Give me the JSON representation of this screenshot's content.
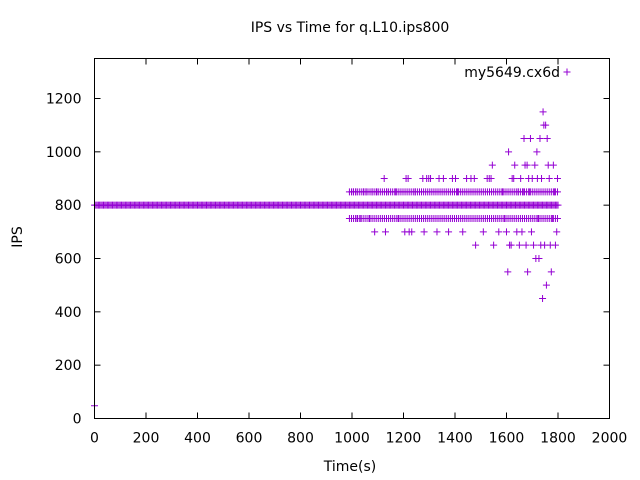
{
  "chart_data": {
    "type": "scatter",
    "title": "IPS vs Time for q.L10.ips800",
    "xlabel": "Time(s)",
    "ylabel": "IPS",
    "xlim": [
      0,
      2000
    ],
    "ylim": [
      0,
      1350
    ],
    "xticks": [
      0,
      200,
      400,
      600,
      800,
      1000,
      1200,
      1400,
      1600,
      1800,
      2000
    ],
    "yticks": [
      0,
      200,
      400,
      600,
      800,
      1000,
      1200
    ],
    "legend_position": "top-right",
    "grid": false,
    "marker": "+",
    "series": [
      {
        "name": "my5649.cx6d",
        "color": "#9400d3",
        "baseline": {
          "from": 0,
          "to": 1800,
          "step": 5,
          "y": 800
        },
        "bands": [
          {
            "y": 850,
            "from": 990,
            "to": 1800,
            "step": 8
          },
          {
            "y": 750,
            "from": 990,
            "to": 1800,
            "step": 8
          }
        ],
        "points": [
          [
            0,
            48
          ],
          [
            1005,
            850
          ],
          [
            1015,
            850
          ],
          [
            1020,
            750
          ],
          [
            1032,
            750
          ],
          [
            1045,
            850
          ],
          [
            1055,
            850
          ],
          [
            1068,
            750
          ],
          [
            1078,
            850
          ],
          [
            1088,
            700
          ],
          [
            1096,
            850
          ],
          [
            1125,
            900
          ],
          [
            1130,
            700
          ],
          [
            1135,
            850
          ],
          [
            1170,
            850
          ],
          [
            1180,
            750
          ],
          [
            1205,
            700
          ],
          [
            1210,
            900
          ],
          [
            1218,
            900
          ],
          [
            1222,
            700
          ],
          [
            1232,
            700
          ],
          [
            1245,
            850
          ],
          [
            1275,
            900
          ],
          [
            1280,
            700
          ],
          [
            1290,
            900
          ],
          [
            1298,
            900
          ],
          [
            1305,
            900
          ],
          [
            1330,
            700
          ],
          [
            1338,
            900
          ],
          [
            1355,
            900
          ],
          [
            1375,
            700
          ],
          [
            1390,
            900
          ],
          [
            1402,
            900
          ],
          [
            1410,
            850
          ],
          [
            1430,
            700
          ],
          [
            1445,
            900
          ],
          [
            1462,
            900
          ],
          [
            1475,
            900
          ],
          [
            1480,
            650
          ],
          [
            1510,
            700
          ],
          [
            1525,
            900
          ],
          [
            1533,
            900
          ],
          [
            1540,
            900
          ],
          [
            1545,
            950
          ],
          [
            1550,
            650
          ],
          [
            1570,
            700
          ],
          [
            1585,
            850
          ],
          [
            1592,
            750
          ],
          [
            1600,
            700
          ],
          [
            1605,
            550
          ],
          [
            1608,
            1000
          ],
          [
            1612,
            650
          ],
          [
            1618,
            650
          ],
          [
            1622,
            900
          ],
          [
            1628,
            900
          ],
          [
            1632,
            950
          ],
          [
            1640,
            700
          ],
          [
            1645,
            850
          ],
          [
            1650,
            650
          ],
          [
            1655,
            900
          ],
          [
            1660,
            700
          ],
          [
            1665,
            850
          ],
          [
            1668,
            1050
          ],
          [
            1672,
            950
          ],
          [
            1676,
            650
          ],
          [
            1680,
            950
          ],
          [
            1682,
            550
          ],
          [
            1686,
            900
          ],
          [
            1690,
            850
          ],
          [
            1693,
            1050
          ],
          [
            1697,
            700
          ],
          [
            1700,
            900
          ],
          [
            1705,
            650
          ],
          [
            1710,
            950
          ],
          [
            1714,
            600
          ],
          [
            1718,
            1000
          ],
          [
            1720,
            900
          ],
          [
            1723,
            750
          ],
          [
            1726,
            600
          ],
          [
            1730,
            1050
          ],
          [
            1733,
            650
          ],
          [
            1736,
            900
          ],
          [
            1740,
            450
          ],
          [
            1742,
            1150
          ],
          [
            1745,
            1100
          ],
          [
            1748,
            650
          ],
          [
            1752,
            1100
          ],
          [
            1755,
            500
          ],
          [
            1758,
            1050
          ],
          [
            1762,
            950
          ],
          [
            1766,
            900
          ],
          [
            1770,
            650
          ],
          [
            1774,
            550
          ],
          [
            1778,
            750
          ],
          [
            1782,
            950
          ],
          [
            1786,
            850
          ],
          [
            1790,
            650
          ],
          [
            1795,
            700
          ],
          [
            1798,
            900
          ]
        ]
      }
    ]
  }
}
